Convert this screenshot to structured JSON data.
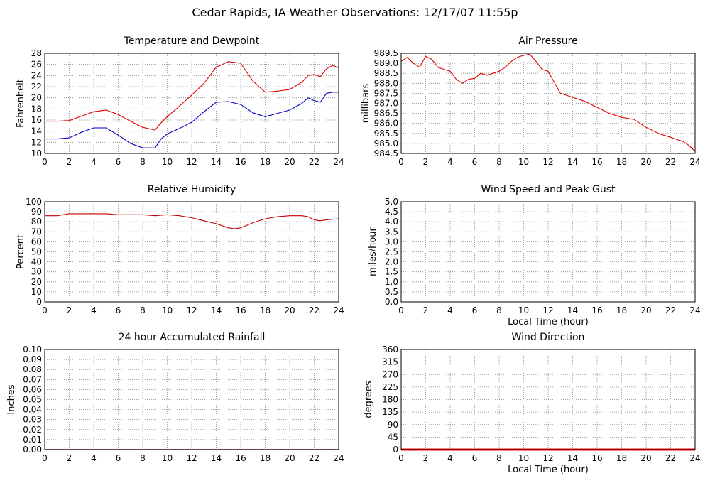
{
  "page": {
    "title": "Cedar Rapids, IA Weather Observations: 12/17/07 11:55p"
  },
  "colors": {
    "temperature": "#e00000",
    "dewpoint": "#0000c8",
    "humidity": "#c80000",
    "pressure": "#e00000",
    "wind_direction": "#ff0000",
    "rainfall": "#e00000",
    "grid": "#888888"
  },
  "chart_data": [
    {
      "id": "temp",
      "type": "line",
      "title": "Temperature and Dewpoint",
      "ylabel": "Fahrenheit",
      "xlabel": "",
      "xlim": [
        0,
        24
      ],
      "ylim": [
        10,
        28
      ],
      "xticks": [
        "0",
        "2",
        "4",
        "6",
        "8",
        "10",
        "12",
        "14",
        "16",
        "18",
        "20",
        "22",
        "24"
      ],
      "yticks": [
        "10",
        "12",
        "14",
        "16",
        "18",
        "20",
        "22",
        "24",
        "26",
        "28"
      ],
      "grid": true,
      "series": [
        {
          "key": "temperature",
          "x": [
            0,
            1,
            2,
            3,
            4,
            5,
            6,
            7,
            8,
            9,
            9.5,
            10,
            11,
            12,
            13,
            14,
            15,
            16,
            17,
            18,
            19,
            20,
            21,
            21.5,
            22,
            22.5,
            23,
            23.5,
            24
          ],
          "y": [
            15.8,
            15.8,
            15.9,
            16.7,
            17.5,
            17.8,
            17.0,
            15.8,
            14.7,
            14.2,
            15.5,
            16.6,
            18.5,
            20.5,
            22.6,
            25.5,
            26.5,
            26.2,
            23.0,
            21.0,
            21.2,
            21.5,
            22.8,
            24.0,
            24.2,
            23.8,
            25.2,
            25.8,
            25.4
          ]
        },
        {
          "key": "dewpoint",
          "x": [
            0,
            1,
            2,
            3,
            4,
            5,
            6,
            7,
            8,
            9,
            9.5,
            10,
            11,
            12,
            13,
            14,
            15,
            16,
            17,
            18,
            19,
            20,
            21,
            21.5,
            22,
            22.5,
            23,
            23.5,
            24
          ],
          "y": [
            12.6,
            12.6,
            12.8,
            13.8,
            14.6,
            14.6,
            13.3,
            11.8,
            11.0,
            11.0,
            12.6,
            13.5,
            14.5,
            15.6,
            17.5,
            19.2,
            19.3,
            18.8,
            17.3,
            16.6,
            17.2,
            17.8,
            19.0,
            20.0,
            19.5,
            19.2,
            20.8,
            21.0,
            21.0
          ]
        }
      ]
    },
    {
      "id": "pressure",
      "type": "line",
      "title": "Air Pressure",
      "ylabel": "millibars",
      "xlabel": "",
      "xlim": [
        0,
        24
      ],
      "ylim": [
        984.5,
        989.5
      ],
      "xticks": [
        "0",
        "2",
        "4",
        "6",
        "8",
        "10",
        "12",
        "14",
        "16",
        "18",
        "20",
        "22",
        "24"
      ],
      "yticks": [
        "984.5",
        "985.0",
        "985.5",
        "986.0",
        "986.5",
        "987.0",
        "987.5",
        "988.0",
        "988.5",
        "989.0",
        "989.5"
      ],
      "grid": true,
      "series": [
        {
          "key": "pressure",
          "x": [
            0,
            0.5,
            1,
            1.5,
            2,
            2.5,
            3,
            3.5,
            4,
            4.5,
            5,
            5.5,
            6,
            6.5,
            7,
            7.5,
            8,
            8.5,
            9,
            9.5,
            10,
            10.5,
            11,
            11.5,
            12,
            13,
            14,
            15,
            16,
            17,
            18,
            19,
            20,
            21,
            22,
            23,
            23.5,
            24
          ],
          "y": [
            989.1,
            989.3,
            989.0,
            988.8,
            989.35,
            989.2,
            988.8,
            988.7,
            988.6,
            988.2,
            988.0,
            988.2,
            988.25,
            988.5,
            988.4,
            988.5,
            988.6,
            988.8,
            989.1,
            989.3,
            989.4,
            989.45,
            989.1,
            988.7,
            988.6,
            987.5,
            987.3,
            987.1,
            986.8,
            986.5,
            986.3,
            986.2,
            985.8,
            985.5,
            985.3,
            985.1,
            984.9,
            984.6
          ]
        }
      ]
    },
    {
      "id": "humidity",
      "type": "line",
      "title": "Relative Humidity",
      "ylabel": "Percent",
      "xlabel": "",
      "xlim": [
        0,
        24
      ],
      "ylim": [
        0,
        100
      ],
      "xticks": [
        "0",
        "2",
        "4",
        "6",
        "8",
        "10",
        "12",
        "14",
        "16",
        "18",
        "20",
        "22",
        "24"
      ],
      "yticks": [
        "0",
        "10",
        "20",
        "30",
        "40",
        "50",
        "60",
        "70",
        "80",
        "90",
        "100"
      ],
      "grid": true,
      "series": [
        {
          "key": "humidity",
          "x": [
            0,
            1,
            2,
            3,
            4,
            5,
            6,
            7,
            8,
            9,
            10,
            11,
            12,
            13,
            14,
            15,
            15.5,
            16,
            17,
            18,
            19,
            20,
            21,
            21.5,
            22,
            22.5,
            23,
            24
          ],
          "y": [
            86,
            86,
            88,
            88,
            88,
            88,
            87,
            87,
            87,
            86,
            87,
            86,
            84,
            81,
            78,
            74,
            73,
            74,
            79,
            83,
            85,
            86,
            86,
            85,
            82,
            81,
            82,
            83
          ]
        }
      ]
    },
    {
      "id": "wind",
      "type": "line",
      "title": "Wind Speed and Peak Gust",
      "ylabel": "miles/hour",
      "xlabel": "Local Time (hour)",
      "xlim": [
        0,
        24
      ],
      "ylim": [
        0,
        5
      ],
      "xticks": [
        "0",
        "2",
        "4",
        "6",
        "8",
        "10",
        "12",
        "14",
        "16",
        "18",
        "20",
        "22",
        "24"
      ],
      "yticks": [
        "0.0",
        "0.5",
        "1.0",
        "1.5",
        "2.0",
        "2.5",
        "3.0",
        "3.5",
        "4.0",
        "4.5",
        "5.0"
      ],
      "grid": true,
      "series": []
    },
    {
      "id": "rain",
      "type": "line",
      "title": "24 hour Accumulated Rainfall",
      "ylabel": "Inches",
      "xlabel": "",
      "xlim": [
        0,
        24
      ],
      "ylim": [
        0,
        0.1
      ],
      "xticks": [
        "0",
        "2",
        "4",
        "6",
        "8",
        "10",
        "12",
        "14",
        "16",
        "18",
        "20",
        "22",
        "24"
      ],
      "yticks": [
        "0.00",
        "0.01",
        "0.02",
        "0.03",
        "0.04",
        "0.05",
        "0.06",
        "0.07",
        "0.08",
        "0.09",
        "0.10"
      ],
      "grid": true,
      "series": [
        {
          "key": "rainfall",
          "x": [
            0,
            24
          ],
          "y": [
            0,
            0
          ]
        }
      ]
    },
    {
      "id": "winddir",
      "type": "line",
      "title": "Wind Direction",
      "ylabel": "degrees",
      "xlabel": "Local Time (hour)",
      "xlim": [
        0,
        24
      ],
      "ylim": [
        0,
        360
      ],
      "xticks": [
        "0",
        "2",
        "4",
        "6",
        "8",
        "10",
        "12",
        "14",
        "16",
        "18",
        "20",
        "22",
        "24"
      ],
      "yticks": [
        "0",
        "45",
        "90",
        "135",
        "180",
        "225",
        "270",
        "315",
        "360"
      ],
      "grid": true,
      "series": [
        {
          "key": "wind_direction",
          "x": [
            0,
            24
          ],
          "y": [
            0,
            0
          ]
        }
      ]
    }
  ]
}
